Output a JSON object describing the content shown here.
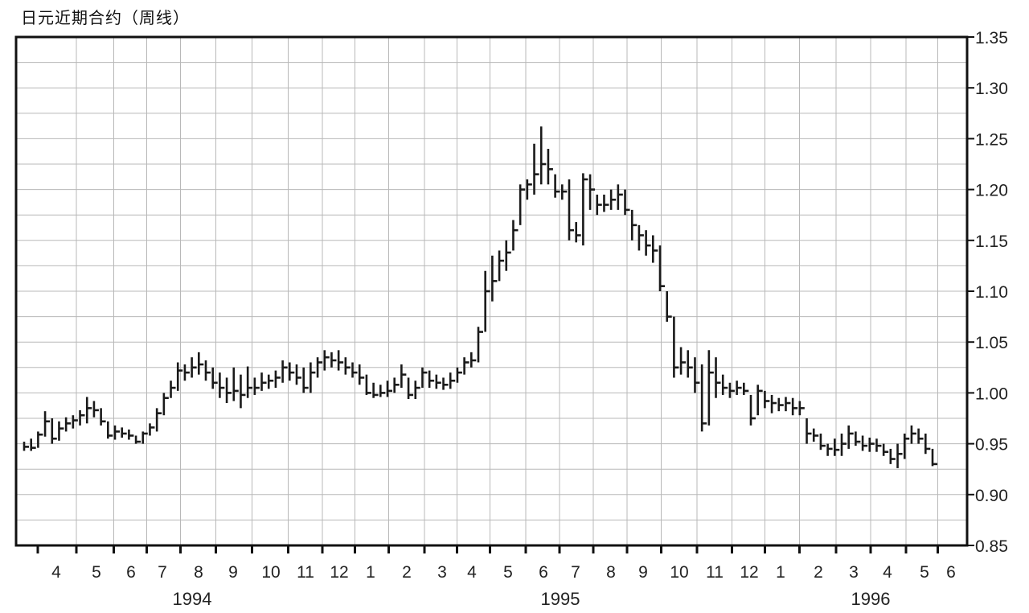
{
  "chart_data": {
    "type": "ohlc",
    "title": "日元近期合约（周线）",
    "ylim": [
      0.85,
      1.35
    ],
    "grid": true,
    "y_ticks": [
      "1.35",
      "1.30",
      "1.25",
      "1.20",
      "1.15",
      "1.10",
      "1.05",
      "1.00",
      "0.95",
      "0.90",
      "0.85"
    ],
    "month_labels": [
      "4",
      "5",
      "6",
      "7",
      "8",
      "9",
      "10",
      "11",
      "12",
      "1",
      "2",
      "3",
      "4",
      "5",
      "6",
      "7",
      "8",
      "9",
      "10",
      "11",
      "12",
      "1",
      "2",
      "3",
      "4",
      "5",
      "6"
    ],
    "year_labels": [
      "1994",
      "1995",
      "1996"
    ],
    "weeks": [
      [
        0.952,
        0.943,
        0.947
      ],
      [
        0.955,
        0.943,
        0.946
      ],
      [
        0.962,
        0.946,
        0.959
      ],
      [
        0.982,
        0.957,
        0.972
      ],
      [
        0.975,
        0.95,
        0.955
      ],
      [
        0.972,
        0.953,
        0.965
      ],
      [
        0.976,
        0.962,
        0.97
      ],
      [
        0.978,
        0.965,
        0.973
      ],
      [
        0.983,
        0.968,
        0.978
      ],
      [
        0.996,
        0.97,
        0.985
      ],
      [
        0.992,
        0.976,
        0.983
      ],
      [
        0.985,
        0.968,
        0.972
      ],
      [
        0.972,
        0.955,
        0.958
      ],
      [
        0.968,
        0.954,
        0.962
      ],
      [
        0.966,
        0.956,
        0.96
      ],
      [
        0.964,
        0.954,
        0.958
      ],
      [
        0.958,
        0.95,
        0.952
      ],
      [
        0.962,
        0.95,
        0.96
      ],
      [
        0.97,
        0.958,
        0.966
      ],
      [
        0.985,
        0.962,
        0.98
      ],
      [
        1.0,
        0.978,
        0.995
      ],
      [
        1.012,
        0.995,
        1.005
      ],
      [
        1.03,
        1.002,
        1.022
      ],
      [
        1.028,
        1.012,
        1.02
      ],
      [
        1.035,
        1.015,
        1.025
      ],
      [
        1.04,
        1.018,
        1.028
      ],
      [
        1.032,
        1.012,
        1.02
      ],
      [
        1.025,
        1.004,
        1.01
      ],
      [
        1.02,
        0.995,
        1.005
      ],
      [
        1.015,
        0.99,
        1.0
      ],
      [
        1.025,
        0.992,
        1.002
      ],
      [
        1.018,
        0.985,
        0.998
      ],
      [
        1.026,
        0.995,
        1.005
      ],
      [
        1.015,
        0.998,
        1.005
      ],
      [
        1.02,
        1.002,
        1.01
      ],
      [
        1.018,
        1.004,
        1.012
      ],
      [
        1.022,
        1.005,
        1.015
      ],
      [
        1.032,
        1.01,
        1.025
      ],
      [
        1.03,
        1.012,
        1.02
      ],
      [
        1.028,
        1.008,
        1.015
      ],
      [
        1.025,
        1.0,
        1.005
      ],
      [
        1.03,
        1.0,
        1.02
      ],
      [
        1.035,
        1.015,
        1.03
      ],
      [
        1.042,
        1.022,
        1.035
      ],
      [
        1.04,
        1.025,
        1.032
      ],
      [
        1.042,
        1.022,
        1.03
      ],
      [
        1.035,
        1.018,
        1.025
      ],
      [
        1.03,
        1.015,
        1.02
      ],
      [
        1.028,
        1.008,
        1.015
      ],
      [
        1.018,
        0.998,
        1.0
      ],
      [
        1.01,
        0.995,
        0.998
      ],
      [
        1.008,
        0.996,
        1.0
      ],
      [
        1.012,
        0.996,
        1.002
      ],
      [
        1.015,
        1.0,
        1.008
      ],
      [
        1.028,
        1.005,
        1.018
      ],
      [
        1.015,
        0.994,
        0.998
      ],
      [
        1.012,
        0.994,
        1.005
      ],
      [
        1.025,
        1.005,
        1.02
      ],
      [
        1.022,
        1.005,
        1.012
      ],
      [
        1.018,
        1.004,
        1.01
      ],
      [
        1.015,
        1.003,
        1.008
      ],
      [
        1.02,
        1.004,
        1.012
      ],
      [
        1.025,
        1.01,
        1.02
      ],
      [
        1.035,
        1.018,
        1.03
      ],
      [
        1.04,
        1.025,
        1.032
      ],
      [
        1.065,
        1.03,
        1.06
      ],
      [
        1.12,
        1.06,
        1.1
      ],
      [
        1.135,
        1.09,
        1.11
      ],
      [
        1.14,
        1.11,
        1.13
      ],
      [
        1.15,
        1.12,
        1.138
      ],
      [
        1.17,
        1.14,
        1.16
      ],
      [
        1.205,
        1.165,
        1.2
      ],
      [
        1.21,
        1.19,
        1.205
      ],
      [
        1.245,
        1.195,
        1.215
      ],
      [
        1.262,
        1.205,
        1.225
      ],
      [
        1.24,
        1.205,
        1.22
      ],
      [
        1.215,
        1.192,
        1.198
      ],
      [
        1.205,
        1.19,
        1.198
      ],
      [
        1.21,
        1.15,
        1.16
      ],
      [
        1.168,
        1.148,
        1.155
      ],
      [
        1.216,
        1.145,
        1.21
      ],
      [
        1.215,
        1.18,
        1.2
      ],
      [
        1.195,
        1.175,
        1.185
      ],
      [
        1.195,
        1.178,
        1.185
      ],
      [
        1.2,
        1.18,
        1.19
      ],
      [
        1.205,
        1.18,
        1.195
      ],
      [
        1.2,
        1.175,
        1.18
      ],
      [
        1.18,
        1.15,
        1.165
      ],
      [
        1.165,
        1.14,
        1.155
      ],
      [
        1.16,
        1.135,
        1.145
      ],
      [
        1.155,
        1.128,
        1.14
      ],
      [
        1.145,
        1.1,
        1.105
      ],
      [
        1.1,
        1.07,
        1.075
      ],
      [
        1.075,
        1.015,
        1.025
      ],
      [
        1.045,
        1.018,
        1.03
      ],
      [
        1.042,
        1.015,
        1.025
      ],
      [
        1.035,
        1.0,
        1.01
      ],
      [
        1.028,
        0.962,
        0.97
      ],
      [
        1.042,
        0.968,
        1.02
      ],
      [
        1.035,
        0.995,
        1.01
      ],
      [
        1.018,
        0.998,
        1.005
      ],
      [
        1.01,
        0.995,
        1.002
      ],
      [
        1.012,
        0.998,
        1.005
      ],
      [
        1.01,
        0.998,
        1.002
      ],
      [
        0.998,
        0.968,
        0.975
      ],
      [
        1.008,
        0.978,
        1.002
      ],
      [
        1.002,
        0.985,
        0.992
      ],
      [
        0.998,
        0.98,
        0.99
      ],
      [
        0.995,
        0.982,
        0.988
      ],
      [
        0.996,
        0.982,
        0.99
      ],
      [
        0.995,
        0.978,
        0.985
      ],
      [
        0.992,
        0.978,
        0.985
      ],
      [
        0.975,
        0.95,
        0.96
      ],
      [
        0.965,
        0.952,
        0.958
      ],
      [
        0.96,
        0.944,
        0.948
      ],
      [
        0.95,
        0.938,
        0.945
      ],
      [
        0.955,
        0.938,
        0.944
      ],
      [
        0.96,
        0.938,
        0.95
      ],
      [
        0.968,
        0.945,
        0.96
      ],
      [
        0.962,
        0.948,
        0.952
      ],
      [
        0.958,
        0.943,
        0.948
      ],
      [
        0.956,
        0.942,
        0.95
      ],
      [
        0.955,
        0.942,
        0.948
      ],
      [
        0.95,
        0.938,
        0.942
      ],
      [
        0.945,
        0.93,
        0.935
      ],
      [
        0.95,
        0.926,
        0.94
      ],
      [
        0.96,
        0.935,
        0.955
      ],
      [
        0.968,
        0.95,
        0.96
      ],
      [
        0.965,
        0.95,
        0.955
      ],
      [
        0.96,
        0.94,
        0.945
      ],
      [
        0.945,
        0.928,
        0.93
      ]
    ]
  }
}
